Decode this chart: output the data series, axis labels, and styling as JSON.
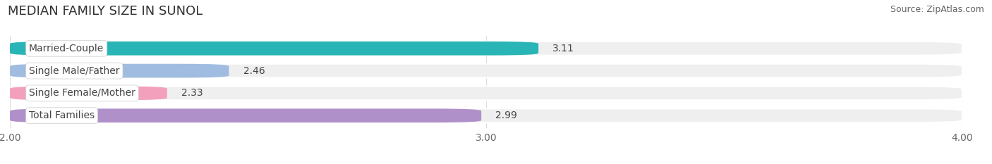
{
  "title": "MEDIAN FAMILY SIZE IN SUNOL",
  "source": "Source: ZipAtlas.com",
  "categories": [
    "Married-Couple",
    "Single Male/Father",
    "Single Female/Mother",
    "Total Families"
  ],
  "values": [
    3.11,
    2.46,
    2.33,
    2.99
  ],
  "bar_colors": [
    "#29b5b5",
    "#a0bce0",
    "#f2a0bc",
    "#b090c8"
  ],
  "xlim": [
    2.0,
    4.0
  ],
  "xmin": 2.0,
  "xmax": 4.0,
  "xticks": [
    2.0,
    3.0,
    4.0
  ],
  "xtick_labels": [
    "2.00",
    "3.00",
    "4.00"
  ],
  "bar_height": 0.62,
  "background_color": "#ffffff",
  "title_fontsize": 13,
  "source_fontsize": 9,
  "bar_label_fontsize": 10,
  "category_fontsize": 10,
  "tick_fontsize": 10,
  "grid_color": "#dddddd"
}
